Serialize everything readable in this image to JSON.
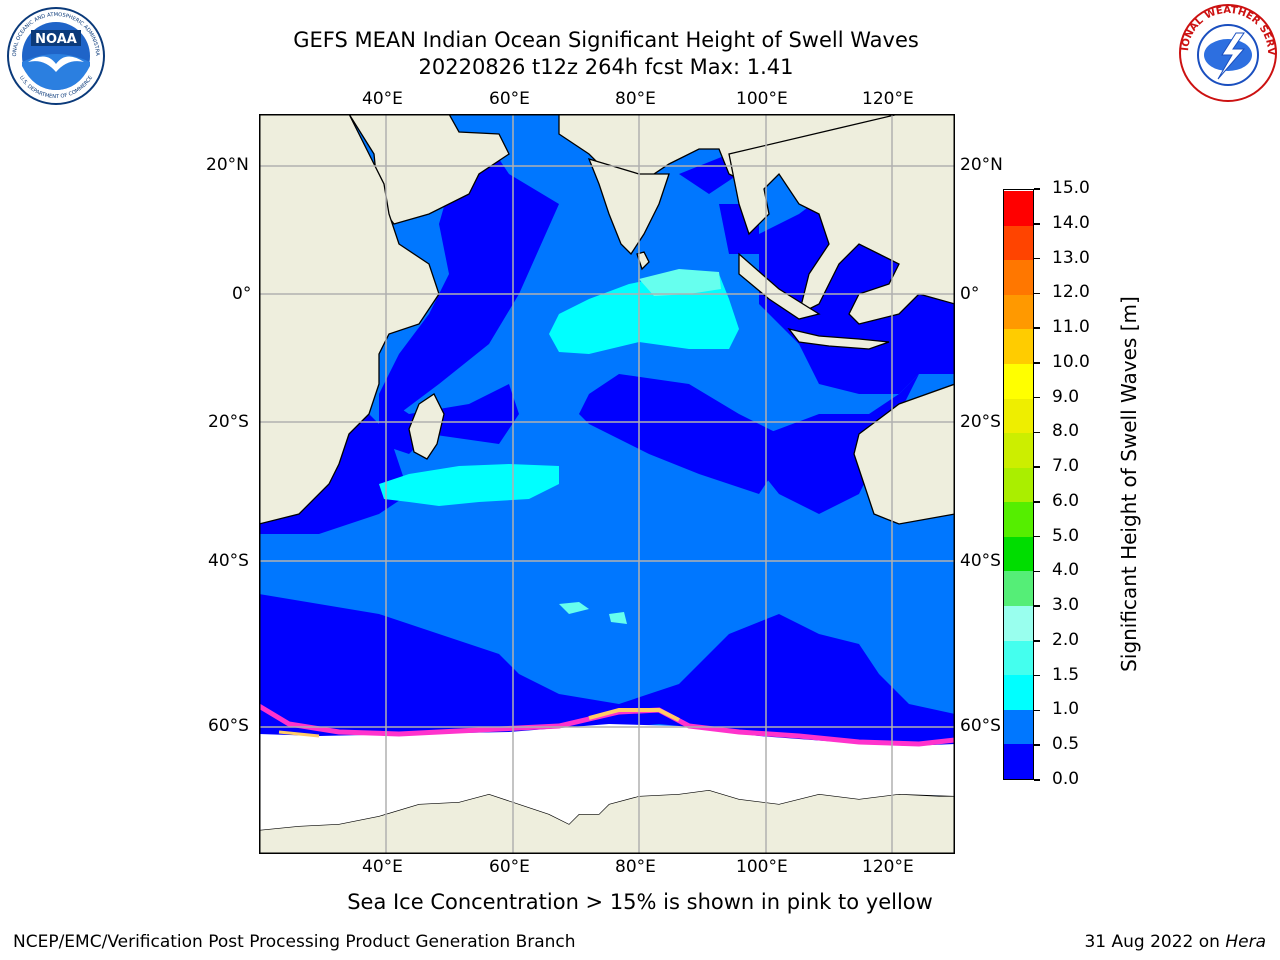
{
  "title": {
    "line1": "GEFS MEAN Indian Ocean Significant Height of Swell Waves",
    "line2": "20220826 t12z 264h fcst   Max: 1.41"
  },
  "map": {
    "lon_ticks": [
      "40°E",
      "60°E",
      "80°E",
      "100°E",
      "120°E"
    ],
    "lat_ticks": [
      "20°N",
      "0°",
      "20°S",
      "40°S",
      "60°S"
    ],
    "colors": {
      "land": "#eeeedd",
      "ocean_low": "#0000ff",
      "ocean_mid": "#0077ff",
      "ocean_cyan": "#00ffff",
      "ocean_lightcyan": "#66ffee",
      "ice": "#ff33cc",
      "grid": "#b0b0b0"
    }
  },
  "colorbar": {
    "label": "Significant Height of Swell Waves [m]",
    "ticks": [
      "0.0",
      "0.5",
      "1.0",
      "1.5",
      "2.0",
      "3.0",
      "4.0",
      "5.0",
      "6.0",
      "7.0",
      "8.0",
      "9.0",
      "10.0",
      "11.0",
      "12.0",
      "13.0",
      "14.0",
      "15.0"
    ],
    "colors": [
      "#0000ff",
      "#0077ff",
      "#00ffff",
      "#44ffee",
      "#99ffee",
      "#55ee77",
      "#00dd00",
      "#55ee00",
      "#aaee00",
      "#ccee00",
      "#eeee00",
      "#ffff00",
      "#ffcc00",
      "#ff9900",
      "#ff7700",
      "#ff4400",
      "#ff0000"
    ]
  },
  "note": "Sea Ice Concentration > 15% is shown in pink to yellow",
  "footer": {
    "left": "NCEP/EMC/Verification Post Processing Product Generation Branch",
    "right_date": "31 Aug 2022 on ",
    "right_machine": "Hera"
  },
  "logos": {
    "noaa_text": "NOAA",
    "noaa_ring": "NATIONAL OCEANIC AND ATMOSPHERIC ADMINISTRATION",
    "noaa_ring_bottom": "U.S. DEPARTMENT OF COMMERCE",
    "nws_ring": "NATIONAL WEATHER SERVICE"
  }
}
